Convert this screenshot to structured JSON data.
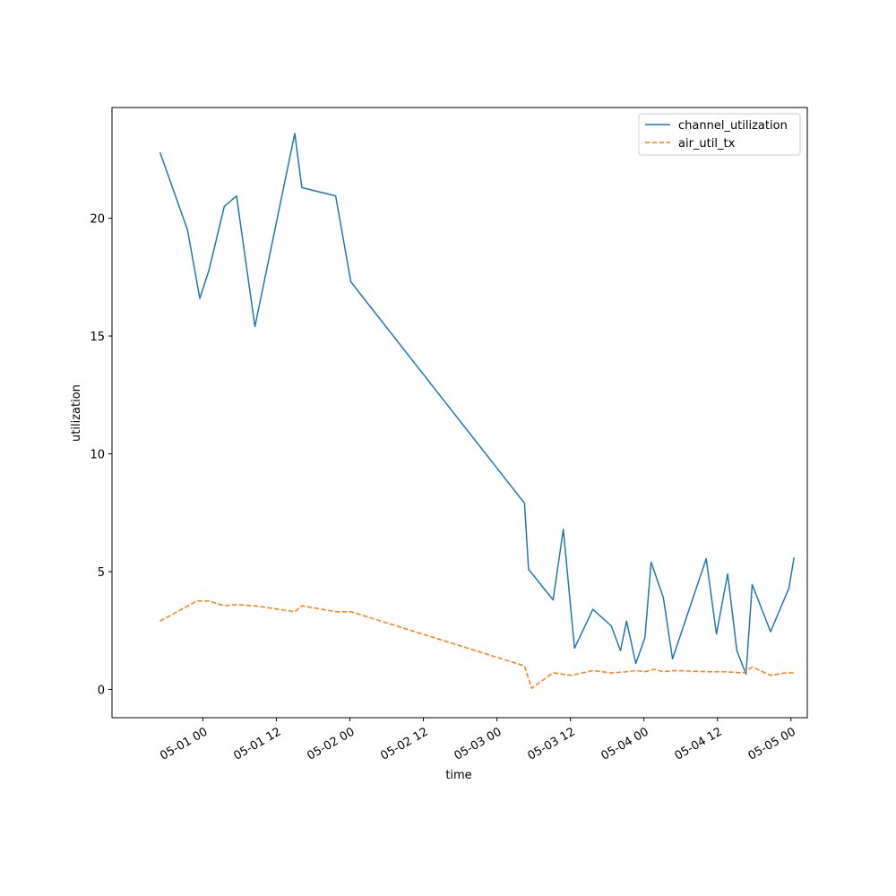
{
  "chart_data": {
    "type": "line",
    "title": "",
    "xlabel": "time",
    "ylabel": "utilization",
    "x_axis_type": "datetime",
    "xlim": [
      "2024-04-30T09:10",
      "2024-05-05T02:40"
    ],
    "ylim": [
      -1.2,
      24.7
    ],
    "x_ticks": [
      {
        "t": "2024-05-01T00:00",
        "label": "05-01 00"
      },
      {
        "t": "2024-05-01T12:00",
        "label": "05-01 12"
      },
      {
        "t": "2024-05-02T00:00",
        "label": "05-02 00"
      },
      {
        "t": "2024-05-02T12:00",
        "label": "05-02 12"
      },
      {
        "t": "2024-05-03T00:00",
        "label": "05-03 00"
      },
      {
        "t": "2024-05-03T12:00",
        "label": "05-03 12"
      },
      {
        "t": "2024-05-04T00:00",
        "label": "05-04 00"
      },
      {
        "t": "2024-05-04T12:00",
        "label": "05-04 12"
      },
      {
        "t": "2024-05-05T00:00",
        "label": "05-05 00"
      }
    ],
    "y_ticks": [
      0,
      5,
      10,
      15,
      20
    ],
    "y_tick_labels": [
      "0",
      "5",
      "10",
      "15",
      "20"
    ],
    "grid": false,
    "legend_position": "top-right",
    "series": [
      {
        "name": "channel_utilization",
        "color": "#1f77b4",
        "style": "solid",
        "points": [
          [
            "2024-04-30T17:00",
            22.8
          ],
          [
            "2024-04-30T21:30",
            19.5
          ],
          [
            "2024-04-30T23:30",
            16.6
          ],
          [
            "2024-05-01T01:00",
            17.8
          ],
          [
            "2024-05-01T03:30",
            20.5
          ],
          [
            "2024-05-01T05:30",
            20.95
          ],
          [
            "2024-05-01T08:30",
            15.4
          ],
          [
            "2024-05-01T15:00",
            23.6
          ],
          [
            "2024-05-01T16:10",
            21.3
          ],
          [
            "2024-05-01T21:40",
            20.95
          ],
          [
            "2024-05-02T00:10",
            17.3
          ],
          [
            "2024-05-03T04:30",
            7.9
          ],
          [
            "2024-05-03T05:10",
            5.1
          ],
          [
            "2024-05-03T09:10",
            3.8
          ],
          [
            "2024-05-03T10:50",
            6.8
          ],
          [
            "2024-05-03T12:40",
            1.75
          ],
          [
            "2024-05-03T15:40",
            3.4
          ],
          [
            "2024-05-03T18:40",
            2.7
          ],
          [
            "2024-05-03T20:10",
            1.65
          ],
          [
            "2024-05-03T21:10",
            2.9
          ],
          [
            "2024-05-03T22:40",
            1.1
          ],
          [
            "2024-05-04T00:10",
            2.2
          ],
          [
            "2024-05-04T01:10",
            5.4
          ],
          [
            "2024-05-04T03:10",
            3.9
          ],
          [
            "2024-05-04T04:40",
            1.3
          ],
          [
            "2024-05-04T10:10",
            5.55
          ],
          [
            "2024-05-04T11:50",
            2.35
          ],
          [
            "2024-05-04T13:40",
            4.9
          ],
          [
            "2024-05-04T15:10",
            1.65
          ],
          [
            "2024-05-04T16:40",
            0.65
          ],
          [
            "2024-05-04T17:40",
            4.45
          ],
          [
            "2024-05-04T20:40",
            2.45
          ],
          [
            "2024-05-04T23:40",
            4.3
          ],
          [
            "2024-05-05T00:30",
            5.6
          ]
        ]
      },
      {
        "name": "air_util_tx",
        "color": "#ff7f0e",
        "style": "dashed",
        "points": [
          [
            "2024-04-30T17:00",
            2.9
          ],
          [
            "2024-04-30T23:00",
            3.75
          ],
          [
            "2024-05-01T01:00",
            3.75
          ],
          [
            "2024-05-01T03:30",
            3.55
          ],
          [
            "2024-05-01T05:30",
            3.6
          ],
          [
            "2024-05-01T08:30",
            3.55
          ],
          [
            "2024-05-01T15:00",
            3.3
          ],
          [
            "2024-05-01T16:10",
            3.55
          ],
          [
            "2024-05-01T21:40",
            3.3
          ],
          [
            "2024-05-02T00:10",
            3.3
          ],
          [
            "2024-05-03T04:30",
            1.0
          ],
          [
            "2024-05-03T05:40",
            0.05
          ],
          [
            "2024-05-03T09:10",
            0.7
          ],
          [
            "2024-05-03T12:10",
            0.6
          ],
          [
            "2024-05-03T15:40",
            0.8
          ],
          [
            "2024-05-03T18:40",
            0.7
          ],
          [
            "2024-05-03T21:10",
            0.75
          ],
          [
            "2024-05-03T22:40",
            0.8
          ],
          [
            "2024-05-04T00:10",
            0.75
          ],
          [
            "2024-05-04T01:40",
            0.85
          ],
          [
            "2024-05-04T03:10",
            0.75
          ],
          [
            "2024-05-04T05:10",
            0.8
          ],
          [
            "2024-05-04T10:10",
            0.75
          ],
          [
            "2024-05-04T13:10",
            0.75
          ],
          [
            "2024-05-04T16:10",
            0.7
          ],
          [
            "2024-05-04T17:40",
            0.95
          ],
          [
            "2024-05-04T20:40",
            0.6
          ],
          [
            "2024-05-04T23:10",
            0.7
          ],
          [
            "2024-05-05T00:30",
            0.7
          ]
        ]
      }
    ]
  }
}
